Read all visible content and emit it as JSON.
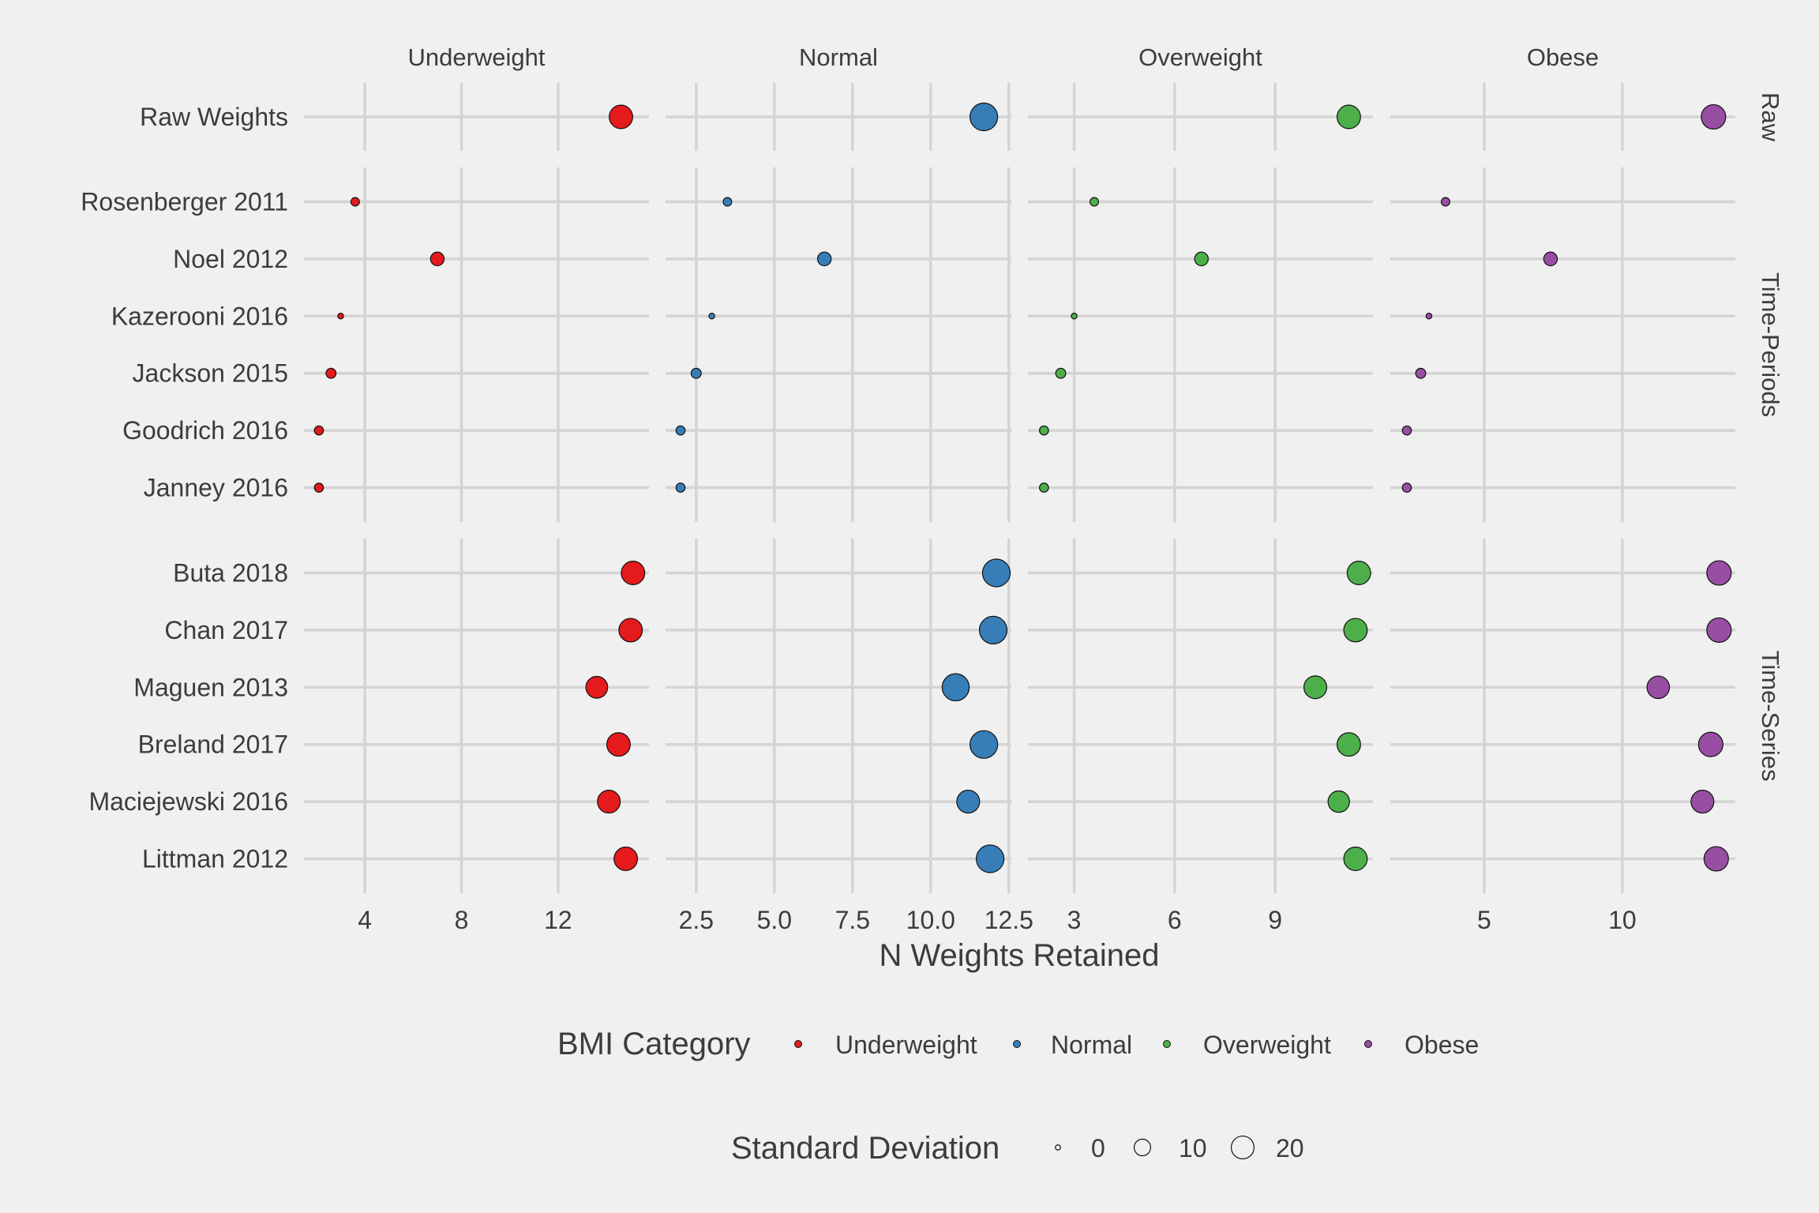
{
  "chart_data": {
    "type": "scatter",
    "title": "",
    "xlabel": "N Weights Retained",
    "ylabel": "",
    "grid": true,
    "legend_placement": "bottom",
    "colors": {
      "Underweight": "#e41a1c",
      "Normal": "#377eb8",
      "Overweight": "#4daf4a",
      "Obese": "#984ea3",
      "background": "#f0f0f0",
      "grid": "#d4d4d4",
      "text": "#3c3c3c"
    },
    "columns": [
      {
        "name": "Underweight",
        "xlim": [
          1.48,
          15.76
        ],
        "ticks": [
          4,
          8,
          12
        ],
        "tick_labels": [
          "4",
          "8",
          "12"
        ]
      },
      {
        "name": "Normal",
        "xlim": [
          1.52,
          12.58
        ],
        "ticks": [
          2.5,
          5.0,
          7.5,
          10.0,
          12.5
        ],
        "tick_labels": [
          "2.5",
          "5.0",
          "7.5",
          "10.0",
          "12.5"
        ]
      },
      {
        "name": "Overweight",
        "xlim": [
          1.62,
          11.92
        ],
        "ticks": [
          3,
          6,
          9
        ],
        "tick_labels": [
          "3",
          "6",
          "9"
        ]
      },
      {
        "name": "Obese",
        "xlim": [
          1.6,
          14.09
        ],
        "ticks": [
          5,
          10
        ],
        "tick_labels": [
          "5",
          "10"
        ]
      }
    ],
    "row_groups": [
      {
        "name": "Raw",
        "rows": [
          "Raw Weights"
        ]
      },
      {
        "name": "Time-Periods",
        "rows": [
          "Rosenberger 2011",
          "Noel 2012",
          "Kazerooni 2016",
          "Jackson 2015",
          "Goodrich 2016",
          "Janney 2016"
        ]
      },
      {
        "name": "Time-Series",
        "rows": [
          "Buta 2018",
          "Chan 2017",
          "Maguen 2013",
          "Breland 2017",
          "Maciejewski 2016",
          "Littman 2012"
        ]
      }
    ],
    "series": [
      {
        "name": "Underweight",
        "values": {
          "Raw Weights": 14.6,
          "Rosenberger 2011": 3.6,
          "Noel 2012": 7.0,
          "Kazerooni 2016": 3.0,
          "Jackson 2015": 2.6,
          "Goodrich 2016": 2.1,
          "Janney 2016": 2.1,
          "Buta 2018": 15.1,
          "Chan 2017": 15.0,
          "Maguen 2013": 13.6,
          "Breland 2017": 14.5,
          "Maciejewski 2016": 14.1,
          "Littman 2012": 14.8
        },
        "sd": {
          "Raw Weights": 17,
          "Rosenberger 2011": 1.3,
          "Noel 2012": 5,
          "Kazerooni 2016": 0,
          "Jackson 2015": 2.2,
          "Goodrich 2016": 1.6,
          "Janney 2016": 1.6,
          "Buta 2018": 17,
          "Chan 2017": 17,
          "Maguen 2013": 14.5,
          "Breland 2017": 17,
          "Maciejewski 2016": 16,
          "Littman 2012": 17
        }
      },
      {
        "name": "Normal",
        "values": {
          "Raw Weights": 11.7,
          "Rosenberger 2011": 3.5,
          "Noel 2012": 6.6,
          "Kazerooni 2016": 3.0,
          "Jackson 2015": 2.5,
          "Goodrich 2016": 2.0,
          "Janney 2016": 2.0,
          "Buta 2018": 12.1,
          "Chan 2017": 12.0,
          "Maguen 2013": 10.8,
          "Breland 2017": 11.7,
          "Maciejewski 2016": 11.2,
          "Littman 2012": 11.9
        },
        "sd": {
          "Raw Weights": 24,
          "Rosenberger 2011": 1.3,
          "Noel 2012": 5,
          "Kazerooni 2016": 0,
          "Jackson 2015": 2.2,
          "Goodrich 2016": 1.6,
          "Janney 2016": 1.6,
          "Buta 2018": 24,
          "Chan 2017": 24,
          "Maguen 2013": 23,
          "Breland 2017": 24,
          "Maciejewski 2016": 16,
          "Littman 2012": 24
        }
      },
      {
        "name": "Overweight",
        "values": {
          "Raw Weights": 11.2,
          "Rosenberger 2011": 3.6,
          "Noel 2012": 6.8,
          "Kazerooni 2016": 3.0,
          "Jackson 2015": 2.6,
          "Goodrich 2016": 2.1,
          "Janney 2016": 2.1,
          "Buta 2018": 11.5,
          "Chan 2017": 11.4,
          "Maguen 2013": 10.2,
          "Breland 2017": 11.2,
          "Maciejewski 2016": 10.9,
          "Littman 2012": 11.4
        },
        "sd": {
          "Raw Weights": 17,
          "Rosenberger 2011": 1.3,
          "Noel 2012": 5,
          "Kazerooni 2016": 0,
          "Jackson 2015": 2.2,
          "Goodrich 2016": 1.6,
          "Janney 2016": 1.6,
          "Buta 2018": 17,
          "Chan 2017": 17,
          "Maguen 2013": 16,
          "Breland 2017": 17,
          "Maciejewski 2016": 14,
          "Littman 2012": 17
        }
      },
      {
        "name": "Obese",
        "values": {
          "Raw Weights": 13.3,
          "Rosenberger 2011": 3.6,
          "Noel 2012": 7.4,
          "Kazerooni 2016": 3.0,
          "Jackson 2015": 2.7,
          "Goodrich 2016": 2.2,
          "Janney 2016": 2.2,
          "Buta 2018": 13.5,
          "Chan 2017": 13.5,
          "Maguen 2013": 11.3,
          "Breland 2017": 13.2,
          "Maciejewski 2016": 12.9,
          "Littman 2012": 13.4
        },
        "sd": {
          "Raw Weights": 18.5,
          "Rosenberger 2011": 1.3,
          "Noel 2012": 5,
          "Kazerooni 2016": 0,
          "Jackson 2015": 2.2,
          "Goodrich 2016": 1.6,
          "Janney 2016": 1.6,
          "Buta 2018": 18.5,
          "Chan 2017": 18.5,
          "Maguen 2013": 15.5,
          "Breland 2017": 18.5,
          "Maciejewski 2016": 16,
          "Littman 2012": 18.5
        }
      }
    ],
    "legend_color": {
      "title": "BMI Category",
      "items": [
        "Underweight",
        "Normal",
        "Overweight",
        "Obese"
      ]
    },
    "legend_size": {
      "title": "Standard Deviation",
      "values": [
        0,
        10,
        20
      ],
      "labels": [
        "0",
        "10",
        "20"
      ]
    }
  }
}
